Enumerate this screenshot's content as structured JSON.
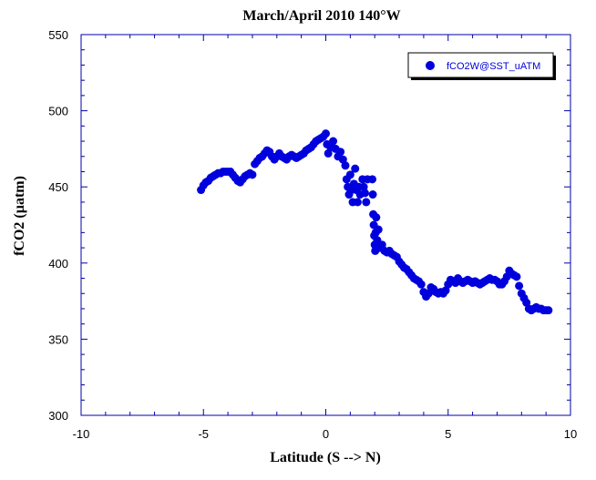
{
  "chart_data": {
    "type": "scatter",
    "title": "March/April 2010 140°W",
    "xlabel": "Latitude (S --> N)",
    "ylabel": "fCO2 (µatm)",
    "xlim": [
      -10,
      10
    ],
    "ylim": [
      300,
      550
    ],
    "xticks": [
      "-10",
      "-5",
      "0",
      "5",
      "10"
    ],
    "yticks": [
      "300",
      "350",
      "400",
      "450",
      "500",
      "550"
    ],
    "grid": false,
    "legend_position": "top-right",
    "marker_color": "#0000dd",
    "series": [
      {
        "name": "fCO2W@SST_uATM",
        "points": [
          [
            -5.1,
            448
          ],
          [
            -5.0,
            451
          ],
          [
            -4.9,
            453
          ],
          [
            -4.8,
            454
          ],
          [
            -4.7,
            456
          ],
          [
            -4.6,
            457
          ],
          [
            -4.5,
            458
          ],
          [
            -4.4,
            459
          ],
          [
            -4.3,
            459
          ],
          [
            -4.2,
            460
          ],
          [
            -4.1,
            460
          ],
          [
            -4.0,
            460
          ],
          [
            -3.9,
            460
          ],
          [
            -3.8,
            458
          ],
          [
            -3.7,
            456
          ],
          [
            -3.6,
            454
          ],
          [
            -3.5,
            453
          ],
          [
            -3.4,
            455
          ],
          [
            -3.3,
            457
          ],
          [
            -3.2,
            458
          ],
          [
            -3.1,
            459
          ],
          [
            -3.0,
            458
          ],
          [
            -2.9,
            465
          ],
          [
            -2.8,
            467
          ],
          [
            -2.7,
            469
          ],
          [
            -2.6,
            470
          ],
          [
            -2.5,
            472
          ],
          [
            -2.4,
            474
          ],
          [
            -2.3,
            473
          ],
          [
            -2.2,
            470
          ],
          [
            -2.1,
            468
          ],
          [
            -2.0,
            470
          ],
          [
            -1.9,
            472
          ],
          [
            -1.8,
            470
          ],
          [
            -1.7,
            469
          ],
          [
            -1.6,
            468
          ],
          [
            -1.5,
            470
          ],
          [
            -1.4,
            471
          ],
          [
            -1.3,
            470
          ],
          [
            -1.2,
            469
          ],
          [
            -1.1,
            470
          ],
          [
            -1.0,
            471
          ],
          [
            -0.9,
            472
          ],
          [
            -0.8,
            474
          ],
          [
            -0.7,
            475
          ],
          [
            -0.6,
            476
          ],
          [
            -0.5,
            478
          ],
          [
            -0.4,
            480
          ],
          [
            -0.3,
            481
          ],
          [
            -0.2,
            482
          ],
          [
            -0.1,
            483
          ],
          [
            0.0,
            485
          ],
          [
            0.05,
            478
          ],
          [
            0.1,
            472
          ],
          [
            0.2,
            476
          ],
          [
            0.3,
            480
          ],
          [
            0.4,
            475
          ],
          [
            0.5,
            470
          ],
          [
            0.6,
            473
          ],
          [
            0.7,
            468
          ],
          [
            0.8,
            464
          ],
          [
            0.85,
            455
          ],
          [
            0.9,
            450
          ],
          [
            0.95,
            445
          ],
          [
            1.0,
            458
          ],
          [
            1.05,
            448
          ],
          [
            1.1,
            440
          ],
          [
            1.15,
            452
          ],
          [
            1.2,
            462
          ],
          [
            1.25,
            448
          ],
          [
            1.3,
            440
          ],
          [
            1.35,
            450
          ],
          [
            1.4,
            445
          ],
          [
            1.5,
            455
          ],
          [
            1.55,
            450
          ],
          [
            1.6,
            446
          ],
          [
            1.65,
            440
          ],
          [
            1.7,
            455
          ],
          [
            1.9,
            455
          ],
          [
            1.92,
            445
          ],
          [
            1.94,
            432
          ],
          [
            1.96,
            425
          ],
          [
            1.98,
            418
          ],
          [
            2.0,
            412
          ],
          [
            2.02,
            408
          ],
          [
            2.04,
            420
          ],
          [
            2.06,
            430
          ],
          [
            2.1,
            415
          ],
          [
            2.15,
            422
          ],
          [
            2.2,
            410
          ],
          [
            2.3,
            412
          ],
          [
            2.4,
            408
          ],
          [
            2.5,
            407
          ],
          [
            2.6,
            408
          ],
          [
            2.7,
            406
          ],
          [
            2.8,
            405
          ],
          [
            2.9,
            404
          ],
          [
            3.0,
            401
          ],
          [
            3.1,
            399
          ],
          [
            3.2,
            397
          ],
          [
            3.3,
            396
          ],
          [
            3.4,
            394
          ],
          [
            3.5,
            392
          ],
          [
            3.6,
            390
          ],
          [
            3.7,
            389
          ],
          [
            3.8,
            388
          ],
          [
            3.9,
            386
          ],
          [
            4.0,
            381
          ],
          [
            4.1,
            378
          ],
          [
            4.2,
            380
          ],
          [
            4.3,
            384
          ],
          [
            4.4,
            383
          ],
          [
            4.5,
            381
          ],
          [
            4.6,
            380
          ],
          [
            4.7,
            381
          ],
          [
            4.8,
            380
          ],
          [
            4.9,
            382
          ],
          [
            5.0,
            386
          ],
          [
            5.1,
            389
          ],
          [
            5.2,
            388
          ],
          [
            5.3,
            387
          ],
          [
            5.4,
            390
          ],
          [
            5.5,
            388
          ],
          [
            5.6,
            387
          ],
          [
            5.7,
            388
          ],
          [
            5.8,
            389
          ],
          [
            5.9,
            388
          ],
          [
            6.0,
            387
          ],
          [
            6.1,
            388
          ],
          [
            6.2,
            387
          ],
          [
            6.3,
            386
          ],
          [
            6.4,
            387
          ],
          [
            6.5,
            388
          ],
          [
            6.6,
            389
          ],
          [
            6.7,
            390
          ],
          [
            6.8,
            389
          ],
          [
            6.9,
            389
          ],
          [
            7.0,
            388
          ],
          [
            7.1,
            386
          ],
          [
            7.2,
            386
          ],
          [
            7.3,
            388
          ],
          [
            7.4,
            391
          ],
          [
            7.5,
            395
          ],
          [
            7.6,
            393
          ],
          [
            7.7,
            392
          ],
          [
            7.8,
            391
          ],
          [
            7.9,
            385
          ],
          [
            8.0,
            380
          ],
          [
            8.1,
            377
          ],
          [
            8.2,
            374
          ],
          [
            8.3,
            370
          ],
          [
            8.4,
            369
          ],
          [
            8.5,
            370
          ],
          [
            8.6,
            371
          ],
          [
            8.7,
            370
          ],
          [
            8.8,
            370
          ],
          [
            8.9,
            369
          ],
          [
            9.0,
            369
          ],
          [
            9.1,
            369
          ]
        ]
      }
    ]
  }
}
